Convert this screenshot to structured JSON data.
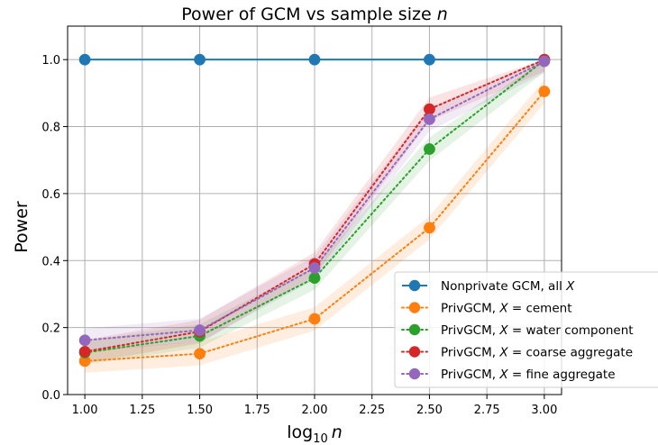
{
  "chart_data": {
    "type": "line",
    "title_prefix": "Power of GCM vs sample size ",
    "title_var": "n",
    "xlabel_base": "log",
    "xlabel_sub": "10",
    "xlabel_var": "n",
    "ylabel": "Power",
    "xlim": [
      0.925,
      3.075
    ],
    "ylim": [
      0.0,
      1.1
    ],
    "x": [
      1.0,
      1.5,
      2.0,
      2.5,
      3.0
    ],
    "x_ticks": [
      "1.00",
      "1.25",
      "1.50",
      "1.75",
      "2.00",
      "2.25",
      "2.50",
      "2.75",
      "3.00"
    ],
    "x_tick_values": [
      1.0,
      1.25,
      1.5,
      1.75,
      2.0,
      2.25,
      2.5,
      2.75,
      3.0
    ],
    "y_ticks": [
      "0.0",
      "0.2",
      "0.4",
      "0.6",
      "0.8",
      "1.0"
    ],
    "y_tick_values": [
      0.0,
      0.2,
      0.4,
      0.6,
      0.8,
      1.0
    ],
    "grid": true,
    "legend_position": "lower-right",
    "series": [
      {
        "name": "Nonprivate GCM, all ",
        "name_var": "X",
        "name_suffix": "",
        "color": "#1f77b4",
        "style": "solid",
        "values": [
          1.0,
          1.0,
          1.0,
          1.0,
          1.0
        ],
        "band": 0.0
      },
      {
        "name": "PrivGCM, ",
        "name_var": "X",
        "name_suffix": " = cement",
        "color": "#ff7f0e",
        "style": "dotted",
        "values": [
          0.1,
          0.122,
          0.226,
          0.498,
          0.905
        ],
        "band": 0.035
      },
      {
        "name": "PrivGCM, ",
        "name_var": "X",
        "name_suffix": " = water component",
        "color": "#2ca02c",
        "style": "dotted",
        "values": [
          0.125,
          0.175,
          0.348,
          0.733,
          0.998
        ],
        "band": 0.035
      },
      {
        "name": "PrivGCM, ",
        "name_var": "X",
        "name_suffix": " = coarse aggregate",
        "color": "#d62728",
        "style": "dotted",
        "values": [
          0.128,
          0.188,
          0.39,
          0.852,
          1.0
        ],
        "band": 0.035
      },
      {
        "name": "PrivGCM, ",
        "name_var": "X",
        "name_suffix": " = fine aggregate",
        "color": "#9467bd",
        "style": "dotted",
        "values": [
          0.162,
          0.192,
          0.378,
          0.822,
          0.995
        ],
        "band": 0.035
      }
    ]
  }
}
